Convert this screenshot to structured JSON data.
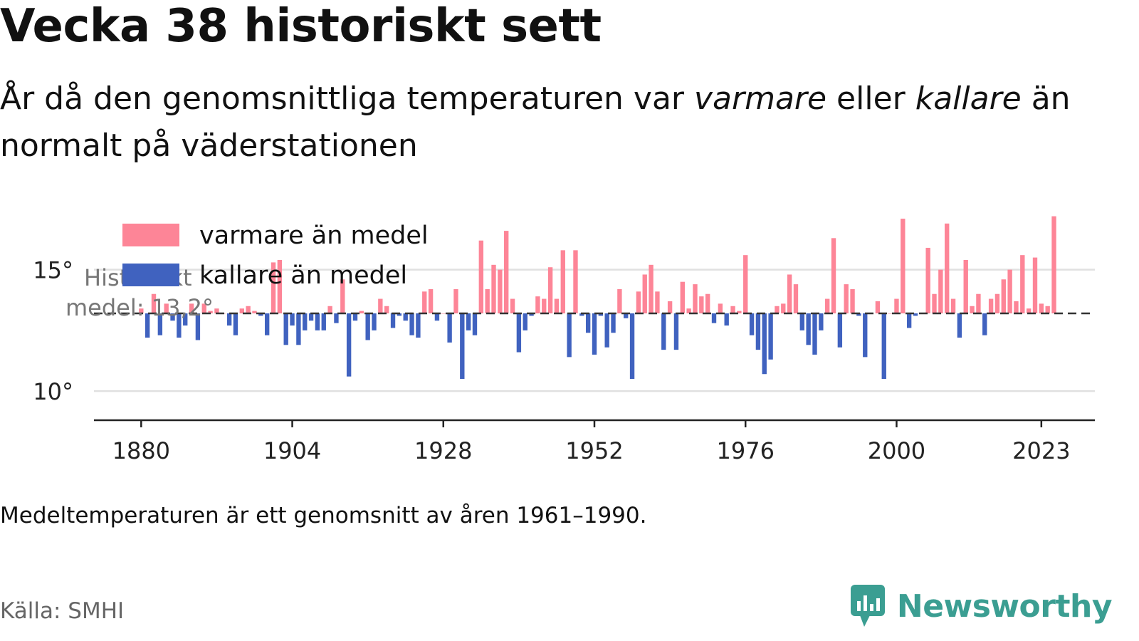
{
  "title": "Vecka 38 historiskt sett",
  "subtitle": {
    "part1": "År då den genomsnittliga temperaturen var ",
    "warmer": "varmare",
    "part2": " eller ",
    "colder": "kallare",
    "part3": " än normalt på väderstationen"
  },
  "note": "Medeltemperaturen är ett genomsnitt av åren 1961–1990.",
  "source": "Källa: SMHI",
  "brand": {
    "name": "Newsworthy",
    "icon": "newsworthy-logo-icon"
  },
  "colors": {
    "warm": "#fd8597",
    "cold": "#4062bf",
    "brand": "#3b9e92",
    "grid": "#e0e0e0"
  },
  "chart_data": {
    "type": "bar",
    "baseline": 13.2,
    "baseline_line1": "Historiskt",
    "baseline_line2": "medel: 13,2°",
    "ylim": [
      8.8,
      17.6
    ],
    "xlim": [
      1872.5,
      2031.5
    ],
    "y_ticks": [
      {
        "value": 10,
        "label": "10°"
      },
      {
        "value": 15,
        "label": "15°"
      }
    ],
    "x_ticks": [
      {
        "value": 1880,
        "label": "1880"
      },
      {
        "value": 1904,
        "label": "1904"
      },
      {
        "value": 1928,
        "label": "1928"
      },
      {
        "value": 1952,
        "label": "1952"
      },
      {
        "value": 1976,
        "label": "1976"
      },
      {
        "value": 2000,
        "label": "2000"
      },
      {
        "value": 2023,
        "label": "2023"
      }
    ],
    "legend": [
      {
        "label": "varmare än medel",
        "color": "#fd8597"
      },
      {
        "label": "kallare än medel",
        "color": "#4062bf"
      }
    ],
    "legend_position": "top-left",
    "start_year": 1880,
    "values": [
      13.4,
      12.2,
      14.0,
      12.3,
      13.6,
      12.9,
      12.2,
      12.7,
      13.6,
      12.1,
      13.6,
      13.3,
      13.4,
      13.2,
      12.7,
      12.3,
      13.4,
      13.5,
      13.3,
      13.1,
      12.3,
      15.3,
      15.4,
      11.9,
      12.7,
      11.9,
      12.5,
      12.9,
      12.5,
      12.5,
      13.5,
      12.8,
      14.6,
      10.6,
      12.9,
      13.3,
      12.1,
      12.5,
      13.8,
      13.5,
      12.6,
      13.1,
      12.9,
      12.3,
      12.2,
      14.1,
      14.2,
      12.9,
      13.2,
      12.0,
      14.2,
      10.5,
      12.5,
      12.3,
      16.2,
      14.2,
      15.2,
      15.0,
      16.6,
      13.8,
      11.6,
      12.5,
      13.1,
      13.9,
      13.8,
      15.1,
      13.8,
      15.8,
      11.4,
      15.8,
      13.1,
      12.4,
      11.5,
      13.1,
      11.8,
      12.4,
      14.2,
      13.0,
      10.5,
      14.1,
      14.8,
      15.2,
      14.1,
      11.7,
      13.7,
      11.7,
      14.5,
      13.4,
      14.4,
      13.9,
      14.0,
      12.8,
      13.6,
      12.7,
      13.5,
      13.3,
      15.6,
      12.3,
      11.7,
      10.7,
      11.3,
      13.5,
      13.6,
      14.8,
      14.4,
      12.5,
      11.9,
      11.5,
      12.5,
      13.8,
      16.3,
      11.8,
      14.4,
      14.2,
      13.1,
      11.4,
      13.2,
      13.7,
      10.5,
      13.2,
      13.8,
      17.1,
      12.6,
      13.1,
      13.2,
      15.9,
      14.0,
      15.0,
      16.9,
      13.8,
      12.2,
      15.4,
      13.5,
      14.0,
      12.3,
      13.8,
      14.0,
      14.6,
      15.0,
      13.7,
      15.6,
      13.4,
      15.5,
      13.6,
      13.5,
      17.2
    ]
  }
}
